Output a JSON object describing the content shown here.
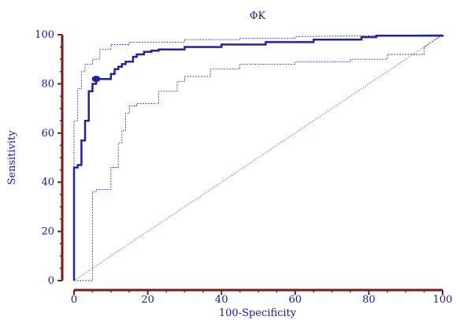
{
  "chart_data": {
    "type": "line",
    "title": "ΦΚ",
    "xlabel": "100-Specificity",
    "ylabel": "Sensitivity",
    "xlim": [
      0,
      100
    ],
    "ylim": [
      0,
      100
    ],
    "x_ticks": [
      "0",
      "20",
      "40",
      "60",
      "80",
      "100"
    ],
    "y_ticks": [
      "0",
      "20",
      "40",
      "60",
      "80",
      "100"
    ],
    "grid": false,
    "legend": "none",
    "colors": {
      "roc": "#23239b",
      "ci": "#3a3ab0",
      "diagonal": "#a04040",
      "axis": "#7a1a1a",
      "text": "#1a1a8c"
    },
    "roc_curve": {
      "x": [
        0,
        0,
        1,
        1,
        2,
        2,
        3,
        3,
        4,
        4,
        5,
        5,
        6,
        6,
        10,
        10,
        11,
        11,
        12,
        12,
        13,
        13,
        14,
        14,
        16,
        16,
        17,
        17,
        19,
        19,
        21,
        21,
        23,
        23,
        30,
        30,
        40,
        40,
        52,
        52,
        65,
        65,
        78,
        78,
        82,
        82,
        100,
        100
      ],
      "y": [
        0,
        46,
        46,
        47,
        47,
        57,
        57,
        65,
        65,
        77,
        77,
        80,
        80,
        82,
        82,
        84,
        84,
        86,
        86,
        87,
        87,
        88,
        88,
        89,
        89,
        91,
        91,
        92,
        92,
        93,
        93,
        93.5,
        93.5,
        94,
        94,
        95,
        95,
        96,
        96,
        97,
        97,
        98,
        98,
        99,
        99,
        99.6,
        99.6,
        100
      ]
    },
    "ci_upper": {
      "x": [
        0,
        0,
        1,
        1,
        2,
        2,
        3,
        3,
        5,
        5,
        7,
        7,
        10,
        10,
        15,
        15,
        30,
        30,
        45,
        45,
        60,
        60,
        100
      ],
      "y": [
        0,
        65,
        65,
        78,
        78,
        85,
        85,
        88,
        88,
        90,
        90,
        94,
        94,
        96,
        96,
        97,
        97,
        98,
        98,
        98.6,
        98.6,
        99.2,
        100
      ]
    },
    "ci_lower": {
      "x": [
        0,
        5,
        5,
        6,
        6,
        10,
        10,
        12,
        12,
        13,
        13,
        14,
        14,
        15,
        15,
        17,
        17,
        23,
        23,
        28,
        28,
        30,
        30,
        37,
        37,
        45,
        45,
        60,
        60,
        75,
        75,
        85,
        85,
        95,
        95,
        100
      ],
      "y": [
        0,
        0,
        36,
        36,
        37,
        37,
        46,
        46,
        56,
        56,
        61,
        61,
        68,
        68,
        71,
        71,
        72,
        72,
        77,
        77,
        81,
        81,
        83,
        83,
        86,
        86,
        88,
        88,
        89,
        89,
        90,
        90,
        92,
        92,
        95,
        100
      ]
    },
    "marker": {
      "x": 6,
      "y": 82
    }
  }
}
